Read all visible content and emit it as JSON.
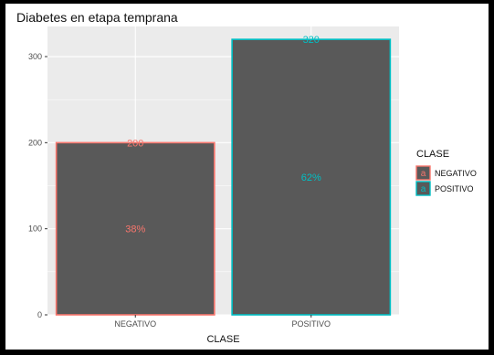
{
  "chart_data": {
    "type": "bar",
    "title": "Diabetes en etapa temprana",
    "xlabel": "CLASE",
    "ylabel": "",
    "categories": [
      "NEGATIVO",
      "POSITIVO"
    ],
    "values": [
      200,
      320
    ],
    "count_labels": [
      "200",
      "320"
    ],
    "percent_labels": [
      "38%",
      "62%"
    ],
    "ylim": [
      0,
      335
    ],
    "yticks": [
      0,
      100,
      200,
      300
    ],
    "ytick_labels": [
      "0",
      "100",
      "200",
      "300"
    ],
    "grid": true,
    "legend": {
      "title": "CLASE",
      "placement": "right",
      "key_glyph": "a",
      "entries": [
        "NEGATIVO",
        "POSITIVO"
      ]
    },
    "colors": {
      "bar_fill": "#595959",
      "panel_background": "#ebebeb",
      "gridline": "#ffffff",
      "series": [
        "#f8766d",
        "#00bfc4"
      ]
    }
  }
}
